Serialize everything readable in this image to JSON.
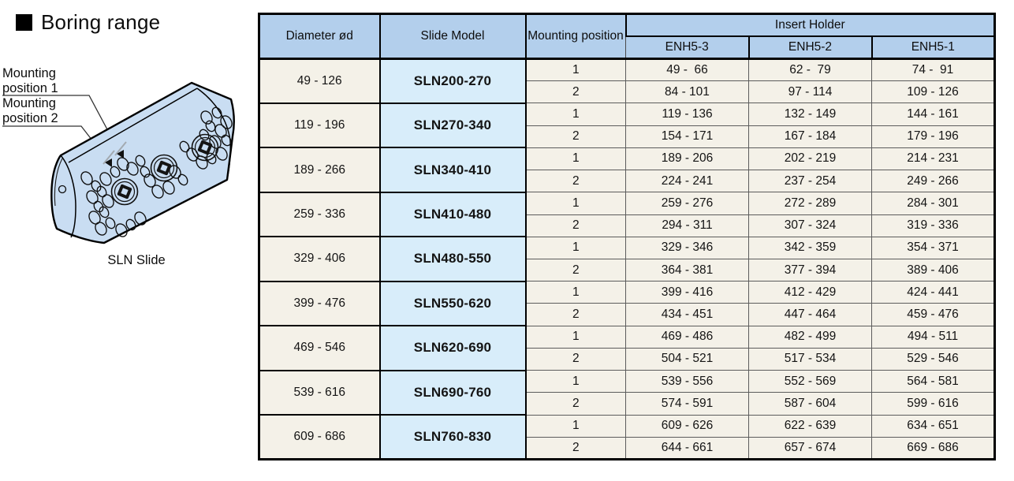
{
  "title": "Boring range",
  "illustration": {
    "label_position_1": "Mounting position 1",
    "label_position_2": "Mounting position 2",
    "caption": "SLN Slide"
  },
  "table": {
    "headers": {
      "diameter": "Diameter ød",
      "slide_model": "Slide Model",
      "mounting_position": "Mounting position",
      "insert_holder": "Insert Holder",
      "insert_columns": [
        "ENH5-3",
        "ENH5-2",
        "ENH5-1"
      ]
    },
    "rows": [
      {
        "diameter": "49 - 126",
        "model": "SLN200-270",
        "positions": [
          {
            "pos": "1",
            "ranges": [
              "49 -  66",
              "62 -  79",
              "74 -  91"
            ]
          },
          {
            "pos": "2",
            "ranges": [
              "84 - 101",
              "97 - 114",
              "109 - 126"
            ]
          }
        ]
      },
      {
        "diameter": "119 - 196",
        "model": "SLN270-340",
        "positions": [
          {
            "pos": "1",
            "ranges": [
              "119 - 136",
              "132 - 149",
              "144 - 161"
            ]
          },
          {
            "pos": "2",
            "ranges": [
              "154 - 171",
              "167 - 184",
              "179 - 196"
            ]
          }
        ]
      },
      {
        "diameter": "189 - 266",
        "model": "SLN340-410",
        "positions": [
          {
            "pos": "1",
            "ranges": [
              "189 - 206",
              "202 - 219",
              "214 - 231"
            ]
          },
          {
            "pos": "2",
            "ranges": [
              "224 - 241",
              "237 - 254",
              "249 - 266"
            ]
          }
        ]
      },
      {
        "diameter": "259 - 336",
        "model": "SLN410-480",
        "positions": [
          {
            "pos": "1",
            "ranges": [
              "259 - 276",
              "272 - 289",
              "284 - 301"
            ]
          },
          {
            "pos": "2",
            "ranges": [
              "294 - 311",
              "307 - 324",
              "319 - 336"
            ]
          }
        ]
      },
      {
        "diameter": "329 - 406",
        "model": "SLN480-550",
        "positions": [
          {
            "pos": "1",
            "ranges": [
              "329 - 346",
              "342 - 359",
              "354 - 371"
            ]
          },
          {
            "pos": "2",
            "ranges": [
              "364 - 381",
              "377 - 394",
              "389 - 406"
            ]
          }
        ]
      },
      {
        "diameter": "399 - 476",
        "model": "SLN550-620",
        "positions": [
          {
            "pos": "1",
            "ranges": [
              "399 - 416",
              "412 - 429",
              "424 - 441"
            ]
          },
          {
            "pos": "2",
            "ranges": [
              "434 - 451",
              "447 - 464",
              "459 - 476"
            ]
          }
        ]
      },
      {
        "diameter": "469 - 546",
        "model": "SLN620-690",
        "positions": [
          {
            "pos": "1",
            "ranges": [
              "469 - 486",
              "482 - 499",
              "494 - 511"
            ]
          },
          {
            "pos": "2",
            "ranges": [
              "504 - 521",
              "517 - 534",
              "529 - 546"
            ]
          }
        ]
      },
      {
        "diameter": "539 - 616",
        "model": "SLN690-760",
        "positions": [
          {
            "pos": "1",
            "ranges": [
              "539 - 556",
              "552 - 569",
              "564 - 581"
            ]
          },
          {
            "pos": "2",
            "ranges": [
              "574 - 591",
              "587 - 604",
              "599 - 616"
            ]
          }
        ]
      },
      {
        "diameter": "609 - 686",
        "model": "SLN760-830",
        "positions": [
          {
            "pos": "1",
            "ranges": [
              "609 - 626",
              "622 - 639",
              "634 - 651"
            ]
          },
          {
            "pos": "2",
            "ranges": [
              "644 - 661",
              "657 - 674",
              "669 - 686"
            ]
          }
        ]
      }
    ]
  },
  "colors": {
    "header_blue": "#b3cfec",
    "model_blue": "#d8edfa",
    "cell_cream": "#f4f1e8",
    "slide_fill": "#c9ddf2"
  }
}
